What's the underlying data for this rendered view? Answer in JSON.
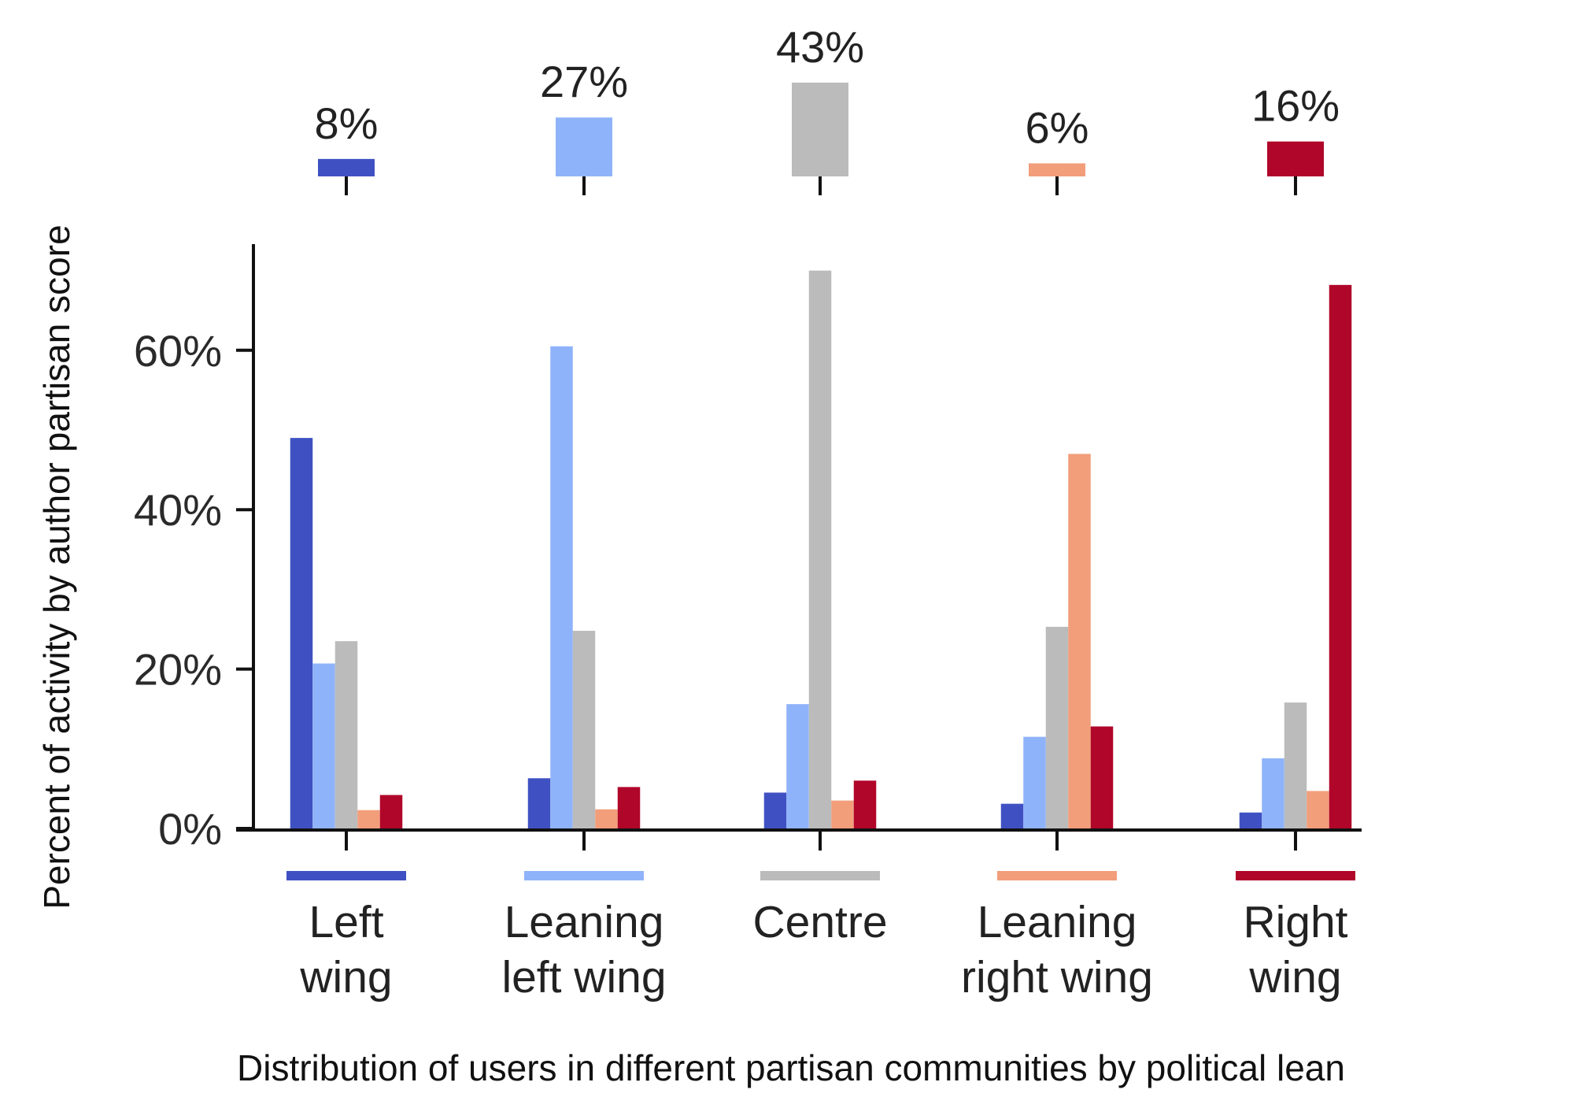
{
  "chart_data": {
    "type": "bar",
    "xlabel": "Distribution of users in different partisan communities by political lean",
    "ylabel": "Percent of activity by author partisan score",
    "ylim": [
      0,
      73
    ],
    "yticks": [
      0,
      20,
      40,
      60
    ],
    "ytick_labels": [
      "0%",
      "20%",
      "40%",
      "60%"
    ],
    "grid": false,
    "legend": "none",
    "categories": [
      {
        "lines": [
          "Left",
          "wing"
        ],
        "color": "#3f51c2",
        "user_share_label": "8%",
        "user_share": 8
      },
      {
        "lines": [
          "Leaning",
          "left wing"
        ],
        "color": "#8fb3fa",
        "user_share_label": "27%",
        "user_share": 27
      },
      {
        "lines": [
          "Centre"
        ],
        "color": "#bbbbbb",
        "user_share_label": "43%",
        "user_share": 43
      },
      {
        "lines": [
          "Leaning",
          "right wing"
        ],
        "color": "#f29e7b",
        "user_share_label": "6%",
        "user_share": 6
      },
      {
        "lines": [
          "Right",
          "wing"
        ],
        "color": "#b0062a",
        "user_share_label": "16%",
        "user_share": 16
      }
    ],
    "series": [
      {
        "color": "#3f51c2",
        "values": [
          49,
          6.3,
          4.5,
          3.1,
          2
        ]
      },
      {
        "color": "#8fb3fa",
        "values": [
          20.7,
          60.5,
          15.6,
          11.5,
          8.8
        ]
      },
      {
        "color": "#bbbbbb",
        "values": [
          23.5,
          24.8,
          70,
          25.3,
          15.8
        ]
      },
      {
        "color": "#f29e7b",
        "values": [
          2.3,
          2.4,
          3.5,
          47,
          4.7
        ]
      },
      {
        "color": "#b0062a",
        "values": [
          4.2,
          5.2,
          6,
          12.8,
          68.2
        ]
      }
    ]
  }
}
